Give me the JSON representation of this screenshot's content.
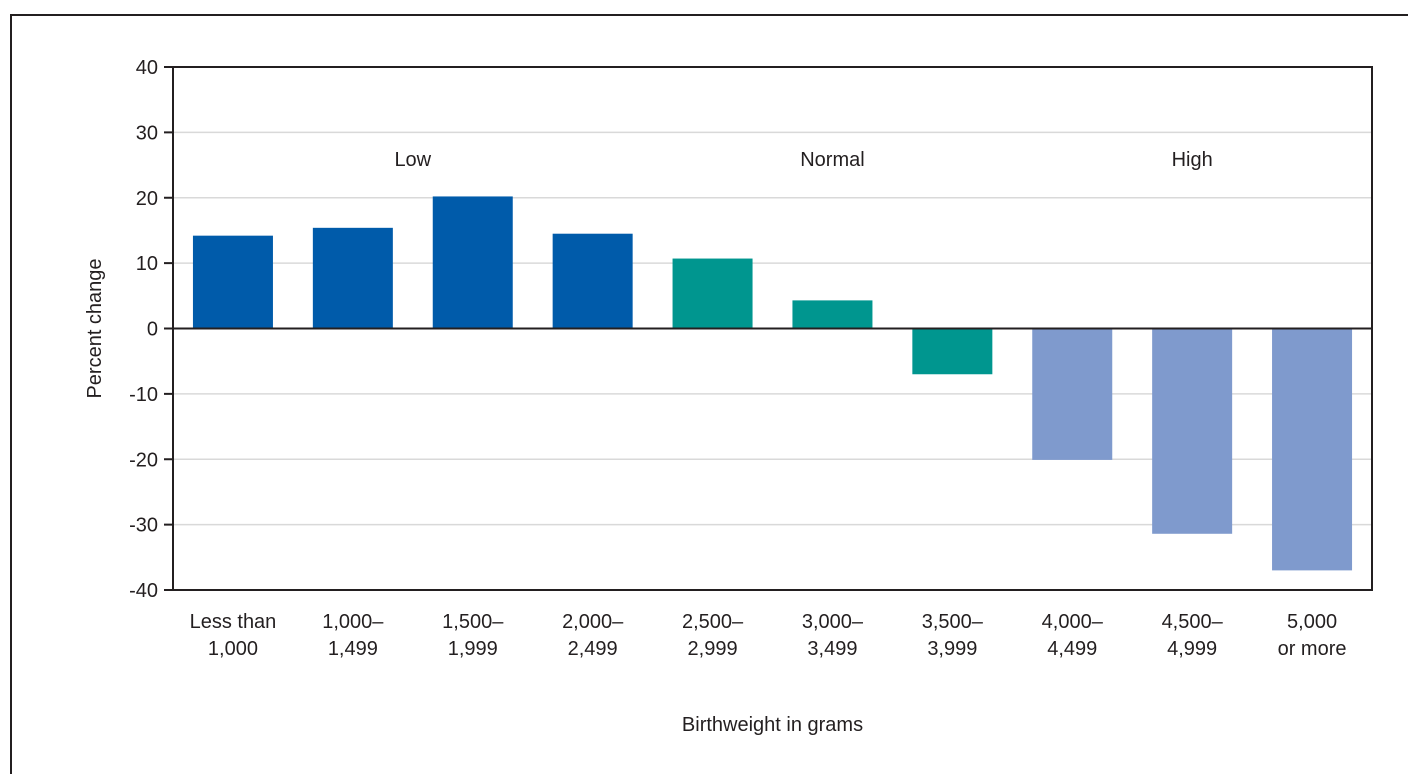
{
  "chart_data": {
    "type": "bar",
    "xlabel": "Birthweight in grams",
    "ylabel": "Percent change",
    "ylim": [
      -40,
      40
    ],
    "yticks": [
      40,
      30,
      20,
      10,
      0,
      -10,
      -20,
      -30,
      -40
    ],
    "grid": true,
    "categories": [
      [
        "Less than",
        "1,000"
      ],
      [
        "1,000–",
        "1,499"
      ],
      [
        "1,500–",
        "1,999"
      ],
      [
        "2,000–",
        "2,499"
      ],
      [
        "2,500–",
        "2,999"
      ],
      [
        "3,000–",
        "3,499"
      ],
      [
        "3,500–",
        "3,999"
      ],
      [
        "4,000–",
        "4,499"
      ],
      [
        "4,500–",
        "4,999"
      ],
      [
        "5,000",
        "or more"
      ]
    ],
    "values": [
      14.2,
      15.4,
      20.2,
      14.5,
      10.7,
      4.3,
      -7.0,
      -20.1,
      -31.4,
      -37.0
    ],
    "groups": [
      {
        "label": "Low",
        "start": 0,
        "end": 3,
        "color": "#005baa"
      },
      {
        "label": "Normal",
        "start": 4,
        "end": 6,
        "color": "#00968f"
      },
      {
        "label": "High",
        "start": 7,
        "end": 9,
        "color": "#7f9acd"
      }
    ]
  }
}
